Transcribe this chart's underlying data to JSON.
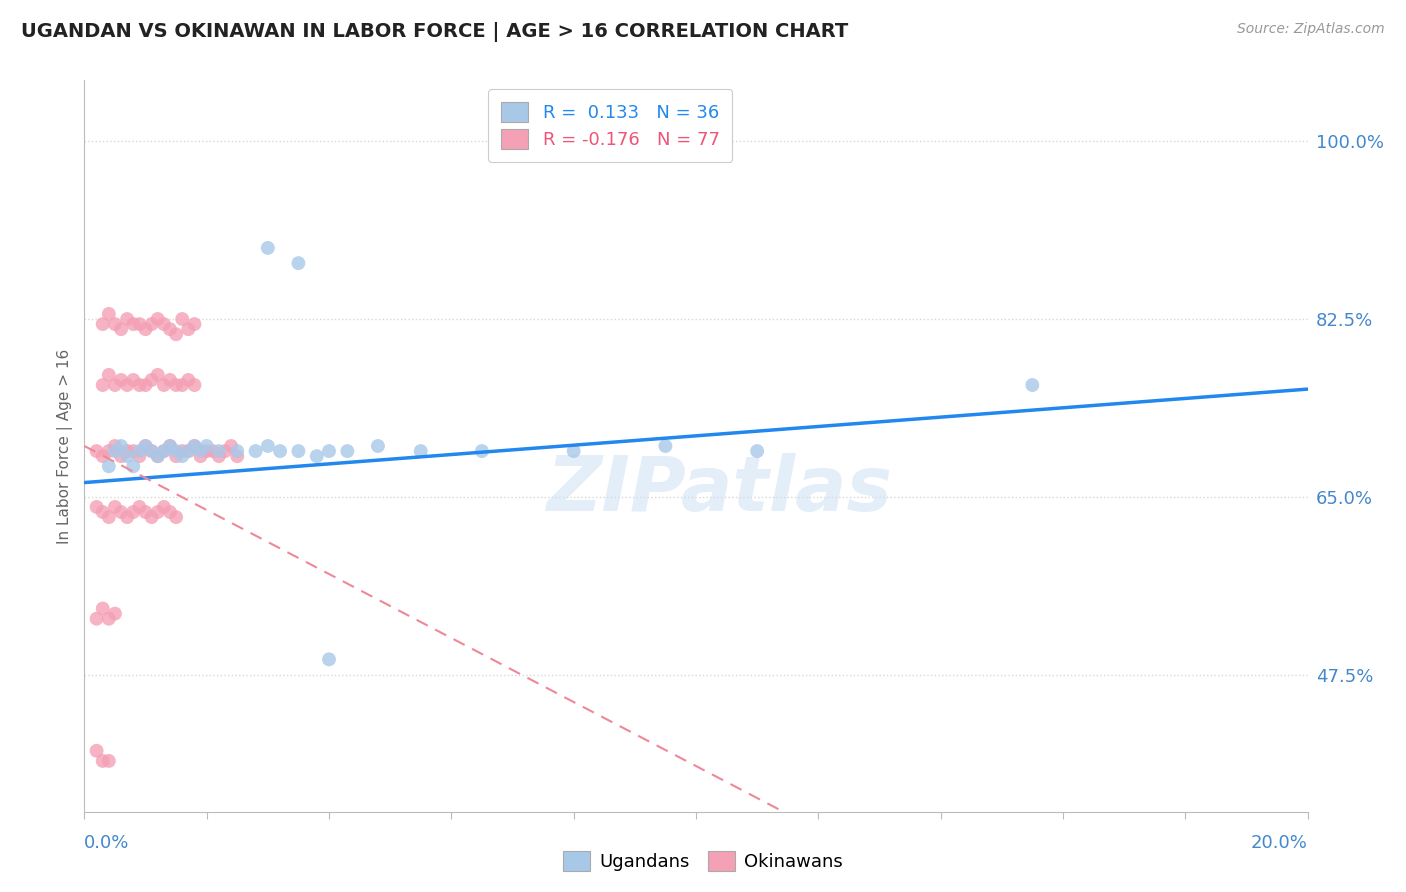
{
  "title": "UGANDAN VS OKINAWAN IN LABOR FORCE | AGE > 16 CORRELATION CHART",
  "source": "Source: ZipAtlas.com",
  "ylabel": "In Labor Force | Age > 16",
  "ytick_labels": [
    "100.0%",
    "82.5%",
    "65.0%",
    "47.5%"
  ],
  "ytick_values": [
    1.0,
    0.825,
    0.65,
    0.475
  ],
  "xlim": [
    0.0,
    0.2
  ],
  "ylim": [
    0.34,
    1.06
  ],
  "ugandan_color": "#a8c8e8",
  "okinawan_color": "#f4a0b5",
  "ugandan_line_color": "#2288ee",
  "okinawan_line_color": "#ee8899",
  "legend_R_ugandan": "0.133",
  "legend_N_ugandan": "36",
  "legend_R_okinawan": "-0.176",
  "legend_N_okinawan": "77",
  "background_color": "#ffffff",
  "grid_color": "#d8d8d8",
  "axis_label_color": "#4488cc",
  "title_color": "#222222",
  "watermark": "ZIPatlas",
  "ugandan_x": [
    0.004,
    0.005,
    0.006,
    0.007,
    0.008,
    0.009,
    0.01,
    0.011,
    0.012,
    0.013,
    0.014,
    0.015,
    0.016,
    0.017,
    0.018,
    0.019,
    0.02,
    0.022,
    0.025,
    0.028,
    0.03,
    0.032,
    0.035,
    0.038,
    0.04,
    0.043,
    0.048,
    0.055,
    0.065,
    0.08,
    0.095,
    0.11,
    0.03,
    0.035,
    0.04,
    0.155
  ],
  "ugandan_y": [
    0.68,
    0.695,
    0.7,
    0.69,
    0.68,
    0.695,
    0.7,
    0.695,
    0.69,
    0.695,
    0.7,
    0.695,
    0.69,
    0.695,
    0.7,
    0.695,
    0.7,
    0.695,
    0.695,
    0.695,
    0.7,
    0.695,
    0.695,
    0.69,
    0.695,
    0.695,
    0.7,
    0.695,
    0.695,
    0.695,
    0.7,
    0.695,
    0.895,
    0.88,
    0.49,
    0.76
  ],
  "okinawan_x": [
    0.002,
    0.003,
    0.004,
    0.005,
    0.006,
    0.007,
    0.008,
    0.009,
    0.01,
    0.011,
    0.012,
    0.013,
    0.014,
    0.015,
    0.016,
    0.017,
    0.018,
    0.019,
    0.02,
    0.021,
    0.022,
    0.023,
    0.024,
    0.025,
    0.003,
    0.004,
    0.005,
    0.006,
    0.007,
    0.008,
    0.009,
    0.01,
    0.011,
    0.012,
    0.013,
    0.014,
    0.015,
    0.016,
    0.017,
    0.018,
    0.003,
    0.004,
    0.005,
    0.006,
    0.007,
    0.008,
    0.009,
    0.01,
    0.011,
    0.012,
    0.013,
    0.014,
    0.015,
    0.016,
    0.017,
    0.018,
    0.002,
    0.003,
    0.004,
    0.005,
    0.006,
    0.007,
    0.008,
    0.009,
    0.01,
    0.011,
    0.012,
    0.013,
    0.014,
    0.015,
    0.002,
    0.003,
    0.004,
    0.005,
    0.002,
    0.003,
    0.004
  ],
  "okinawan_y": [
    0.695,
    0.69,
    0.695,
    0.7,
    0.69,
    0.695,
    0.695,
    0.69,
    0.7,
    0.695,
    0.69,
    0.695,
    0.7,
    0.69,
    0.695,
    0.695,
    0.7,
    0.69,
    0.695,
    0.695,
    0.69,
    0.695,
    0.7,
    0.69,
    0.82,
    0.83,
    0.82,
    0.815,
    0.825,
    0.82,
    0.82,
    0.815,
    0.82,
    0.825,
    0.82,
    0.815,
    0.81,
    0.825,
    0.815,
    0.82,
    0.76,
    0.77,
    0.76,
    0.765,
    0.76,
    0.765,
    0.76,
    0.76,
    0.765,
    0.77,
    0.76,
    0.765,
    0.76,
    0.76,
    0.765,
    0.76,
    0.64,
    0.635,
    0.63,
    0.64,
    0.635,
    0.63,
    0.635,
    0.64,
    0.635,
    0.63,
    0.635,
    0.64,
    0.635,
    0.63,
    0.53,
    0.54,
    0.53,
    0.535,
    0.4,
    0.39,
    0.39
  ]
}
